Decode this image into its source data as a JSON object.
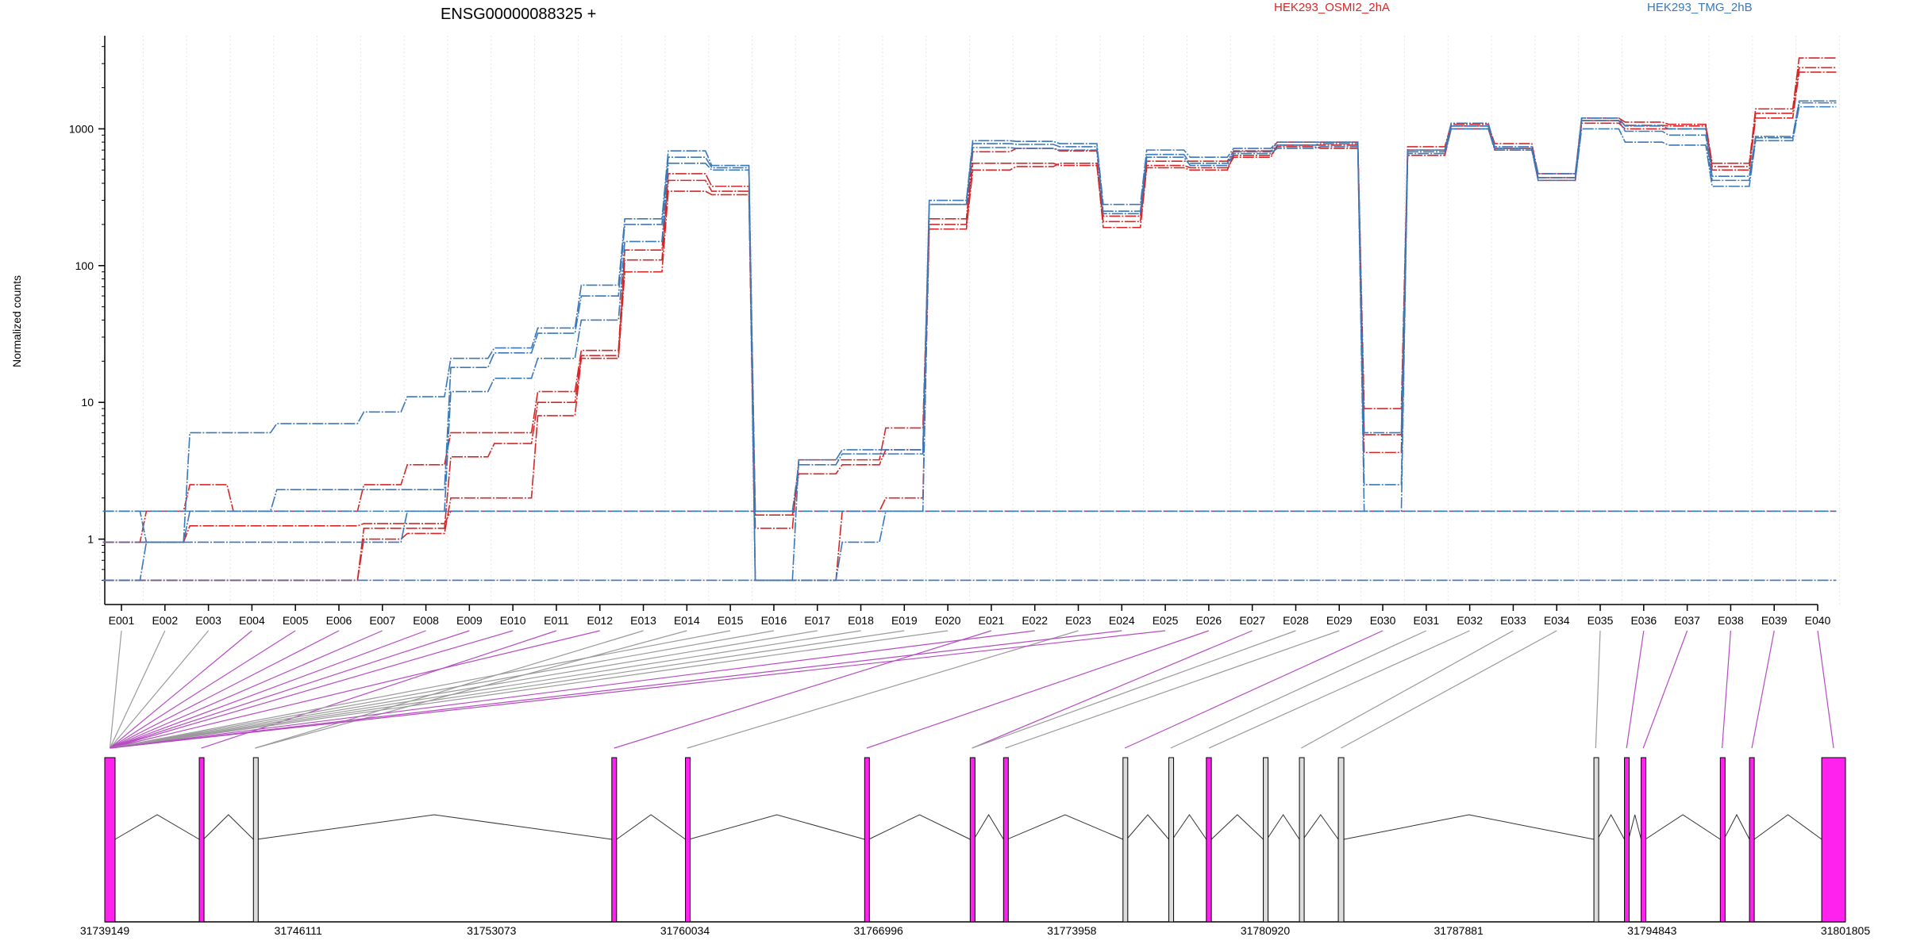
{
  "chart_data": {
    "type": "line",
    "title": "ENSG00000088325 +",
    "ylabel": "Normalized counts",
    "yscale": "log",
    "ylim": [
      0.38,
      4200
    ],
    "yticks": [
      1,
      10,
      100,
      1000
    ],
    "ytick_labels": [
      "1",
      "10",
      "100",
      "1000"
    ],
    "legend": [
      {
        "name": "HEK293_OSMI2_2hA",
        "color": "#d62728"
      },
      {
        "name": "HEK293_TMG_2hB",
        "color": "#3a78b8"
      }
    ],
    "exons": [
      "E001",
      "E002",
      "E003",
      "E004",
      "E005",
      "E006",
      "E007",
      "E008",
      "E009",
      "E010",
      "E011",
      "E012",
      "E013",
      "E014",
      "E015",
      "E016",
      "E017",
      "E018",
      "E019",
      "E020",
      "E021",
      "E022",
      "E023",
      "E024",
      "E025",
      "E026",
      "E027",
      "E028",
      "E029",
      "E030",
      "E031",
      "E032",
      "E033",
      "E034",
      "E035",
      "E036",
      "E037",
      "E038",
      "E039",
      "E040"
    ],
    "series": [
      {
        "group": "red",
        "values": [
          0.95,
          0.95,
          1.25,
          1.25,
          1.25,
          1.25,
          1.3,
          1.3,
          1.6,
          1.6,
          1.6,
          1.6,
          1.6,
          1.6,
          1.6,
          1.6,
          1.6,
          1.6,
          1.6,
          1.6,
          1.6,
          1.6,
          1.6,
          1.6,
          1.6,
          1.6,
          1.6,
          1.6,
          1.6,
          1.6,
          1.6,
          1.6,
          1.6,
          1.6,
          1.6,
          1.6,
          1.6,
          1.6,
          1.6,
          1.6
        ]
      },
      {
        "group": "red",
        "values": [
          0.95,
          1.6,
          2.5,
          1.6,
          1.6,
          1.6,
          2.5,
          3.5,
          6.0,
          6.0,
          12,
          24,
          130,
          470,
          380,
          1.2,
          3.8,
          3.8,
          6.5,
          220,
          680,
          720,
          690,
          230,
          580,
          580,
          690,
          800,
          800,
          9,
          740,
          1080,
          780,
          470,
          1200,
          1120,
          1080,
          560,
          1400,
          3300
        ]
      },
      {
        "group": "red",
        "values": [
          0.5,
          0.5,
          0.5,
          0.5,
          0.5,
          0.5,
          1.0,
          1.1,
          2.0,
          2.0,
          8.0,
          21,
          90,
          350,
          330,
          0.5,
          0.5,
          1.6,
          2.0,
          185,
          500,
          530,
          560,
          190,
          520,
          500,
          640,
          740,
          720,
          4.3,
          640,
          1000,
          720,
          420,
          1100,
          1000,
          1000,
          500,
          1200,
          2600
        ]
      },
      {
        "group": "red",
        "values": [
          0.5,
          0.5,
          0.5,
          0.5,
          0.5,
          0.5,
          1.2,
          1.2,
          4.0,
          5.0,
          10,
          22,
          110,
          420,
          350,
          1.5,
          3.0,
          3.5,
          4.5,
          200,
          560,
          560,
          540,
          210,
          540,
          520,
          620,
          760,
          760,
          5.8,
          700,
          1050,
          700,
          440,
          1150,
          1060,
          1050,
          530,
          1300,
          2800
        ]
      },
      {
        "group": "blue",
        "values": [
          0.95,
          0.95,
          6.0,
          6.0,
          7.0,
          7.0,
          8.5,
          11,
          21,
          25,
          35,
          72,
          220,
          690,
          540,
          0.5,
          3.8,
          4.5,
          4.5,
          300,
          820,
          810,
          780,
          280,
          700,
          620,
          720,
          800,
          800,
          6.0,
          700,
          1100,
          740,
          470,
          1200,
          1050,
          1000,
          450,
          880,
          1600
        ]
      },
      {
        "group": "blue",
        "values": [
          1.6,
          0.95,
          1.6,
          1.6,
          2.3,
          2.3,
          2.3,
          2.3,
          18,
          23,
          32,
          60,
          200,
          620,
          520,
          1.6,
          3.5,
          4.2,
          4.2,
          280,
          780,
          770,
          740,
          250,
          650,
          560,
          680,
          760,
          780,
          2.5,
          680,
          1050,
          720,
          440,
          1150,
          960,
          900,
          420,
          860,
          1550
        ]
      },
      {
        "group": "blue",
        "values": [
          1.6,
          1.6,
          1.6,
          1.6,
          1.6,
          1.6,
          1.6,
          1.6,
          1.6,
          1.6,
          1.6,
          1.6,
          1.6,
          1.6,
          1.6,
          1.6,
          1.6,
          1.6,
          1.6,
          1.6,
          1.6,
          1.6,
          1.6,
          1.6,
          1.6,
          1.6,
          1.6,
          1.6,
          1.6,
          1.6,
          1.6,
          1.6,
          1.6,
          1.6,
          1.6,
          1.6,
          1.6,
          1.6,
          1.6,
          1.6
        ]
      },
      {
        "group": "blue",
        "values": [
          0.5,
          0.95,
          0.95,
          0.95,
          0.95,
          0.95,
          0.95,
          1.6,
          12,
          15,
          21,
          40,
          150,
          560,
          500,
          0.5,
          0.5,
          0.95,
          1.6,
          280,
          730,
          720,
          700,
          240,
          620,
          540,
          660,
          720,
          740,
          1.6,
          660,
          1000,
          700,
          420,
          1000,
          800,
          760,
          380,
          820,
          1450
        ]
      },
      {
        "group": "blue",
        "values": [
          0.5,
          0.5,
          0.5,
          0.5,
          0.5,
          0.5,
          0.5,
          0.5,
          0.5,
          0.5,
          0.5,
          0.5,
          0.5,
          0.5,
          0.5,
          0.5,
          0.5,
          0.5,
          0.5,
          0.5,
          0.5,
          0.5,
          0.5,
          0.5,
          0.5,
          0.5,
          0.5,
          0.5,
          0.5,
          0.5,
          0.5,
          0.5,
          0.5,
          0.5,
          0.5,
          0.5,
          0.5,
          0.5,
          0.5,
          0.5
        ]
      }
    ],
    "gene_model": {
      "coord_ticks": [
        "31739149",
        "31746111",
        "31753073",
        "31760034",
        "31766996",
        "31773958",
        "31780920",
        "31787881",
        "31794843",
        "31801805"
      ],
      "coord_min": 31739149,
      "coord_max": 31801805,
      "exon_blocks": [
        {
          "start": 31739149,
          "end": 31739520,
          "color": "#ff22ee"
        },
        {
          "start": 31742550,
          "end": 31742700,
          "color": "#ff22ee"
        },
        {
          "start": 31744500,
          "end": 31744620,
          "color": "#dddddd"
        },
        {
          "start": 31757400,
          "end": 31757570,
          "color": "#ff22ee"
        },
        {
          "start": 31760050,
          "end": 31760180,
          "color": "#ff22ee"
        },
        {
          "start": 31766500,
          "end": 31766650,
          "color": "#ff22ee"
        },
        {
          "start": 31770300,
          "end": 31770430,
          "color": "#ff22ee"
        },
        {
          "start": 31771500,
          "end": 31771630,
          "color": "#ff22ee"
        },
        {
          "start": 31775800,
          "end": 31775930,
          "color": "#dddddd"
        },
        {
          "start": 31777450,
          "end": 31777580,
          "color": "#dddddd"
        },
        {
          "start": 31778800,
          "end": 31778980,
          "color": "#ff22ee"
        },
        {
          "start": 31780850,
          "end": 31780980,
          "color": "#dddddd"
        },
        {
          "start": 31782150,
          "end": 31782280,
          "color": "#dddddd"
        },
        {
          "start": 31783550,
          "end": 31783750,
          "color": "#dddddd"
        },
        {
          "start": 31792750,
          "end": 31792880,
          "color": "#dddddd"
        },
        {
          "start": 31793850,
          "end": 31794000,
          "color": "#ff22ee"
        },
        {
          "start": 31794450,
          "end": 31794600,
          "color": "#ff22ee"
        },
        {
          "start": 31797300,
          "end": 31797430,
          "color": "#ff22ee"
        },
        {
          "start": 31798350,
          "end": 31798520,
          "color": "#ff22ee"
        },
        {
          "start": 31800950,
          "end": 31801805,
          "color": "#ff22ee"
        }
      ],
      "exon_map": [
        0,
        0,
        0,
        0,
        0,
        0,
        0,
        0,
        0,
        0,
        1,
        0,
        2,
        2,
        0,
        0,
        0,
        0,
        0,
        0,
        3,
        0,
        4,
        0,
        0,
        5,
        6,
        6,
        7,
        8,
        9,
        10,
        12,
        13,
        14,
        15,
        16,
        17,
        18,
        19
      ],
      "exon_map_highlight": [
        0,
        0,
        0,
        1,
        1,
        1,
        1,
        1,
        1,
        1,
        1,
        1,
        0,
        0,
        0,
        0,
        0,
        0,
        0,
        0,
        1,
        1,
        0,
        1,
        1,
        1,
        1,
        0,
        0,
        1,
        0,
        0,
        0,
        0,
        0,
        1,
        1,
        1,
        1,
        1
      ]
    }
  }
}
